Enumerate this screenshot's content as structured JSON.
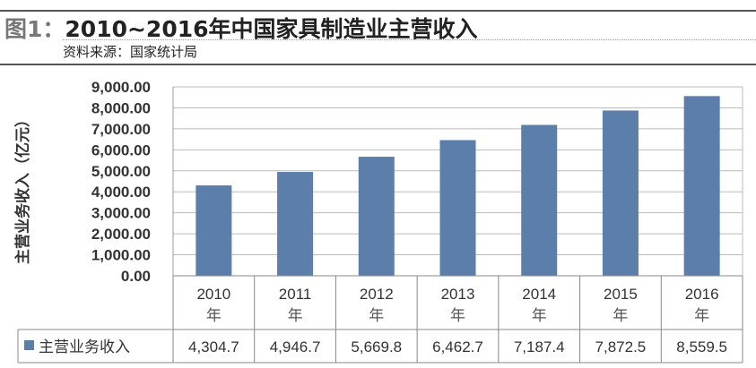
{
  "header": {
    "figure_label": "图1：",
    "title": "2010~2016年中国家具制造业主营收入",
    "source": "资料来源：国家统计局"
  },
  "chart_data": {
    "type": "bar",
    "title": "",
    "ylabel": "主营业务收入（亿元）",
    "xlabel": "",
    "categories": [
      "2010年",
      "2011年",
      "2012年",
      "2013年",
      "2014年",
      "2015年",
      "2016年"
    ],
    "category_lines": [
      [
        "2010",
        "年"
      ],
      [
        "2011",
        "年"
      ],
      [
        "2012",
        "年"
      ],
      [
        "2013",
        "年"
      ],
      [
        "2014",
        "年"
      ],
      [
        "2015",
        "年"
      ],
      [
        "2016",
        "年"
      ]
    ],
    "series": [
      {
        "name": "主营业务收入",
        "values": [
          4304.7,
          4946.7,
          5669.8,
          6462.7,
          7187.4,
          7872.5,
          8559.5
        ],
        "labels": [
          "4,304.7",
          "4,946.7",
          "5,669.8",
          "6,462.7",
          "7,187.4",
          "7,872.5",
          "8,559.5"
        ],
        "color": "#5b7faa"
      }
    ],
    "ylim": [
      0,
      9000
    ],
    "yticks": [
      0,
      1000,
      2000,
      3000,
      4000,
      5000,
      6000,
      7000,
      8000,
      9000
    ],
    "ytick_labels": [
      "0.00",
      "1,000.00",
      "2,000.00",
      "3,000.00",
      "4,000.00",
      "5,000.00",
      "6,000.00",
      "7,000.00",
      "8,000.00",
      "9,000.00"
    ],
    "grid": true,
    "legend": "data-table"
  }
}
